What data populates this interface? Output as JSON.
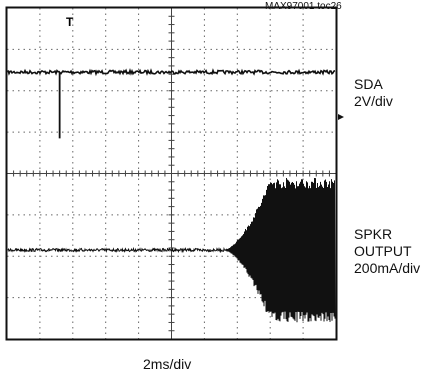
{
  "figure_tag": "MAX97001 toc26",
  "channels": [
    {
      "name": "SDA",
      "scale": "2V/div"
    },
    {
      "name": "SPKR",
      "name2": "OUTPUT",
      "scale": "200mA/div"
    }
  ],
  "xlabel": "2ms/div",
  "chart_data": {
    "type": "line",
    "title": "",
    "xlabel": "2ms/div",
    "x_divisions": 10,
    "y_divisions": 8,
    "grid": true,
    "trigger_marker": "T",
    "series": [
      {
        "name": "SDA",
        "scale": "2V/div",
        "baseline_div_from_top": 1.55,
        "events": [
          {
            "type": "glitch",
            "x_div": 1.6,
            "depth_div": 1.6
          }
        ]
      },
      {
        "name": "SPKR OUTPUT",
        "scale": "200mA/div",
        "baseline_div_from_top": 5.85,
        "events": [
          {
            "type": "ramp_on",
            "x_div_start": 6.6,
            "x_div_full": 8.0,
            "amplitude_div_peak": 1.75
          }
        ]
      }
    ]
  },
  "colors": {
    "trace": "#111111",
    "grid": "#555555",
    "frame": "#111111"
  }
}
